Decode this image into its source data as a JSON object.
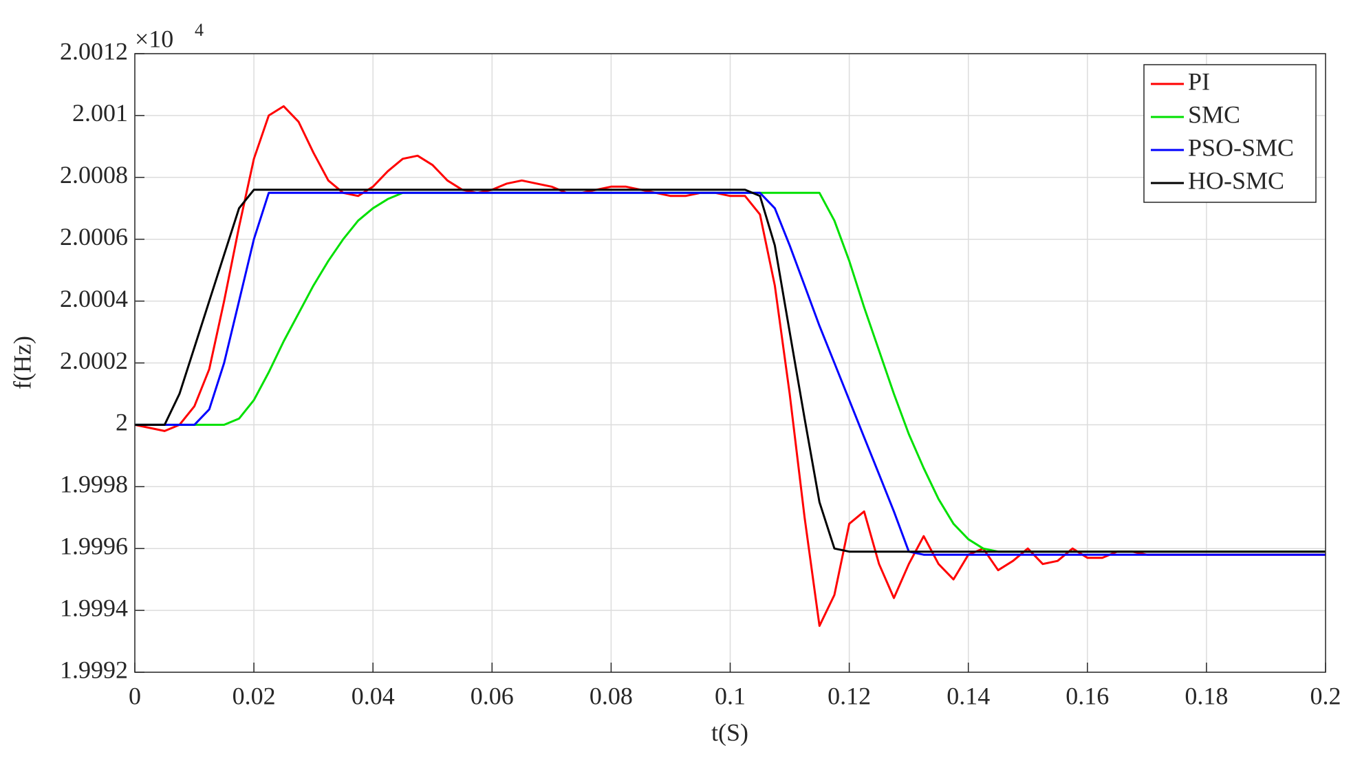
{
  "chart_data": {
    "type": "line",
    "multiplier": {
      "base": "×10",
      "exponent": "4"
    },
    "xlabel": "t(S)",
    "ylabel": "f(Hz)",
    "xlim": [
      0,
      0.2
    ],
    "xticks": [
      0,
      0.02,
      0.04,
      0.06,
      0.08,
      0.1,
      0.12,
      0.14,
      0.16,
      0.18,
      0.2
    ],
    "ylim": [
      1.9992,
      2.0012
    ],
    "yticks": [
      1.9992,
      1.9994,
      1.9996,
      1.9998,
      2,
      2.0002,
      2.0004,
      2.0006,
      2.0008,
      2.001,
      2.0012
    ],
    "grid": true,
    "legend": "upper right",
    "x": [
      0,
      0.0025,
      0.005,
      0.0075,
      0.01,
      0.0125,
      0.015,
      0.0175,
      0.02,
      0.0225,
      0.025,
      0.0275,
      0.03,
      0.0325,
      0.035,
      0.0375,
      0.04,
      0.0425,
      0.045,
      0.0475,
      0.05,
      0.0525,
      0.055,
      0.0575,
      0.06,
      0.0625,
      0.065,
      0.0675,
      0.07,
      0.0725,
      0.075,
      0.0775,
      0.08,
      0.0825,
      0.085,
      0.0875,
      0.09,
      0.0925,
      0.095,
      0.0975,
      0.1,
      0.1025,
      0.105,
      0.1075,
      0.11,
      0.1125,
      0.115,
      0.1175,
      0.12,
      0.1225,
      0.125,
      0.1275,
      0.13,
      0.1325,
      0.135,
      0.1375,
      0.14,
      0.1425,
      0.145,
      0.1475,
      0.15,
      0.1525,
      0.155,
      0.1575,
      0.16,
      0.1625,
      0.165,
      0.1675,
      0.17,
      0.1725,
      0.175,
      0.1775,
      0.18,
      0.1825,
      0.185,
      0.1875,
      0.19,
      0.1925,
      0.195,
      0.1975,
      0.2
    ],
    "series": [
      {
        "name": "PI",
        "color": "#ff0000",
        "values": [
          2,
          1.99999,
          1.99998,
          2,
          2.00006,
          2.00018,
          2.0004,
          2.00064,
          2.00086,
          2.001,
          2.00103,
          2.00098,
          2.00088,
          2.00079,
          2.00075,
          2.00074,
          2.00077,
          2.00082,
          2.00086,
          2.00087,
          2.00084,
          2.00079,
          2.00076,
          2.00075,
          2.00076,
          2.00078,
          2.00079,
          2.00078,
          2.00077,
          2.00075,
          2.00075,
          2.00076,
          2.00077,
          2.00077,
          2.00076,
          2.00075,
          2.00074,
          2.00074,
          2.00075,
          2.00075,
          2.00074,
          2.00074,
          2.00068,
          2.00045,
          2.0001,
          1.9997,
          1.99935,
          1.99945,
          1.99968,
          1.99972,
          1.99955,
          1.99944,
          1.99955,
          1.99964,
          1.99955,
          1.9995,
          1.99958,
          1.9996,
          1.99953,
          1.99956,
          1.9996,
          1.99955,
          1.99956,
          1.9996,
          1.99957,
          1.99957,
          1.99959,
          1.99959,
          1.99958,
          1.99958,
          1.99958,
          1.99958,
          1.99958,
          1.99958,
          1.99958,
          1.99958,
          1.99958,
          1.99958,
          1.99958,
          1.99958,
          1.99958
        ]
      },
      {
        "name": "SMC",
        "color": "#00e000",
        "values": [
          2,
          2,
          2,
          2,
          2,
          2,
          2,
          2.00002,
          2.00008,
          2.00017,
          2.00027,
          2.00036,
          2.00045,
          2.00053,
          2.0006,
          2.00066,
          2.0007,
          2.00073,
          2.00075,
          2.00075,
          2.00075,
          2.00075,
          2.00075,
          2.00075,
          2.00075,
          2.00075,
          2.00075,
          2.00075,
          2.00075,
          2.00075,
          2.00075,
          2.00075,
          2.00075,
          2.00075,
          2.00075,
          2.00075,
          2.00075,
          2.00075,
          2.00075,
          2.00075,
          2.00075,
          2.00075,
          2.00075,
          2.00075,
          2.00075,
          2.00075,
          2.00075,
          2.00066,
          2.00053,
          2.00038,
          2.00024,
          2.0001,
          1.99997,
          1.99986,
          1.99976,
          1.99968,
          1.99963,
          1.9996,
          1.99959,
          1.99959,
          1.99959,
          1.99959,
          1.99959,
          1.99959,
          1.99959,
          1.99959,
          1.99959,
          1.99959,
          1.99959,
          1.99959,
          1.99959,
          1.99959,
          1.99959,
          1.99959,
          1.99959,
          1.99959,
          1.99959,
          1.99959,
          1.99959,
          1.99959,
          1.99959
        ]
      },
      {
        "name": "PSO-SMC",
        "color": "#0000ff",
        "values": [
          2,
          2,
          2,
          2,
          2,
          2.00005,
          2.0002,
          2.0004,
          2.0006,
          2.00075,
          2.00075,
          2.00075,
          2.00075,
          2.00075,
          2.00075,
          2.00075,
          2.00075,
          2.00075,
          2.00075,
          2.00075,
          2.00075,
          2.00075,
          2.00075,
          2.00075,
          2.00075,
          2.00075,
          2.00075,
          2.00075,
          2.00075,
          2.00075,
          2.00075,
          2.00075,
          2.00075,
          2.00075,
          2.00075,
          2.00075,
          2.00075,
          2.00075,
          2.00075,
          2.00075,
          2.00075,
          2.00075,
          2.00075,
          2.0007,
          2.00058,
          2.00045,
          2.00032,
          2.0002,
          2.00008,
          1.99996,
          1.99984,
          1.99972,
          1.99959,
          1.99958,
          1.99958,
          1.99958,
          1.99958,
          1.99958,
          1.99958,
          1.99958,
          1.99958,
          1.99958,
          1.99958,
          1.99958,
          1.99958,
          1.99958,
          1.99958,
          1.99958,
          1.99958,
          1.99958,
          1.99958,
          1.99958,
          1.99958,
          1.99958,
          1.99958,
          1.99958,
          1.99958,
          1.99958,
          1.99958,
          1.99958,
          1.99958
        ]
      },
      {
        "name": "HO-SMC",
        "color": "#000000",
        "values": [
          2,
          2,
          2,
          2.0001,
          2.00025,
          2.0004,
          2.00055,
          2.0007,
          2.00076,
          2.00076,
          2.00076,
          2.00076,
          2.00076,
          2.00076,
          2.00076,
          2.00076,
          2.00076,
          2.00076,
          2.00076,
          2.00076,
          2.00076,
          2.00076,
          2.00076,
          2.00076,
          2.00076,
          2.00076,
          2.00076,
          2.00076,
          2.00076,
          2.00076,
          2.00076,
          2.00076,
          2.00076,
          2.00076,
          2.00076,
          2.00076,
          2.00076,
          2.00076,
          2.00076,
          2.00076,
          2.00076,
          2.00076,
          2.00074,
          2.00058,
          2.0003,
          2.00002,
          1.99975,
          1.9996,
          1.99959,
          1.99959,
          1.99959,
          1.99959,
          1.99959,
          1.99959,
          1.99959,
          1.99959,
          1.99959,
          1.99959,
          1.99959,
          1.99959,
          1.99959,
          1.99959,
          1.99959,
          1.99959,
          1.99959,
          1.99959,
          1.99959,
          1.99959,
          1.99959,
          1.99959,
          1.99959,
          1.99959,
          1.99959,
          1.99959,
          1.99959,
          1.99959,
          1.99959,
          1.99959,
          1.99959,
          1.99959,
          1.99959
        ]
      }
    ]
  }
}
